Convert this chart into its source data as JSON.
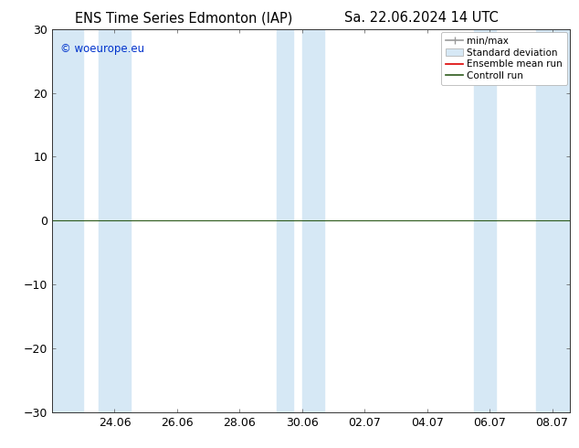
{
  "title_left": "ENS Time Series Edmonton (IAP)",
  "title_right": "Sa. 22.06.2024 14 UTC",
  "ylim": [
    -30,
    30
  ],
  "yticks": [
    -30,
    -20,
    -10,
    0,
    10,
    20,
    30
  ],
  "x_min": 0.0,
  "x_max": 16.583,
  "tick_pos": [
    2.0,
    4.0,
    6.0,
    8.0,
    10.0,
    12.0,
    14.0,
    16.0
  ],
  "tick_labels": [
    "24.06",
    "26.06",
    "28.06",
    "30.06",
    "02.07",
    "04.07",
    "06.07",
    "08.07"
  ],
  "watermark": "© woeurope.eu",
  "watermark_color": "#0033cc",
  "bg_color": "#ffffff",
  "plot_bg_color": "#ffffff",
  "shaded_color": "#d6e8f5",
  "shaded_regions": [
    [
      0.0,
      1.0
    ],
    [
      1.5,
      2.5
    ],
    [
      7.2,
      7.7
    ],
    [
      8.0,
      8.7
    ],
    [
      13.5,
      14.2
    ],
    [
      15.5,
      16.583
    ]
  ],
  "zero_line_color": "#2d5a1b",
  "legend_labels": [
    "min/max",
    "Standard deviation",
    "Ensemble mean run",
    "Controll run"
  ],
  "legend_line_colors": [
    "#999999",
    "#ccddee",
    "#dd0000",
    "#2d5a1b"
  ],
  "font_size": 9,
  "title_font_size": 10.5
}
